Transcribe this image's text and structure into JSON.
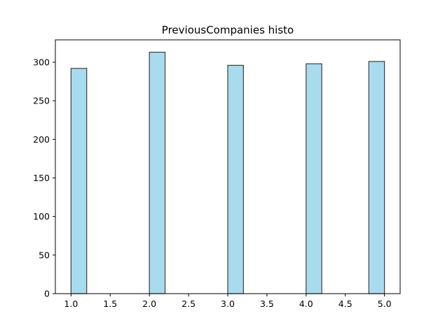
{
  "chart_data": {
    "type": "bar",
    "title": "PreviousCompanies histo",
    "xlabel": "",
    "ylabel": "",
    "xlim": [
      0.8,
      5.2
    ],
    "ylim": [
      0,
      329
    ],
    "xticks": [
      "1.0",
      "1.5",
      "2.0",
      "2.5",
      "3.0",
      "3.5",
      "4.0",
      "4.5",
      "5.0"
    ],
    "yticks": [
      "0",
      "50",
      "100",
      "150",
      "200",
      "250",
      "300"
    ],
    "bins": [
      {
        "x0": 1.0,
        "x1": 1.2,
        "value": 292
      },
      {
        "x0": 2.0,
        "x1": 2.2,
        "value": 313
      },
      {
        "x0": 3.0,
        "x1": 3.2,
        "value": 296
      },
      {
        "x0": 4.0,
        "x1": 4.2,
        "value": 298
      },
      {
        "x0": 4.8,
        "x1": 5.0,
        "value": 301
      }
    ],
    "bar_color": "#a8dbed",
    "edge_color": "#3f3f3f",
    "grid": false
  }
}
